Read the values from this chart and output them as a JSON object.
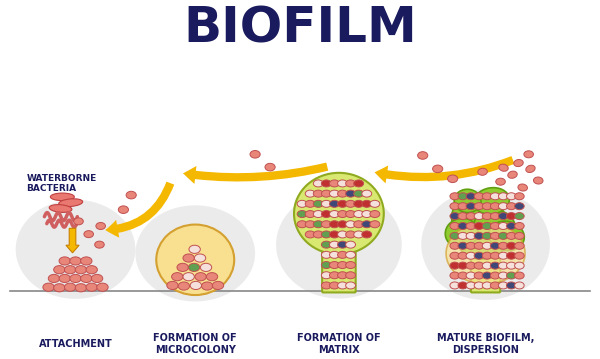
{
  "title": "BIOFILM",
  "title_fontsize": 36,
  "title_fontweight": "bold",
  "title_color": "#1a1a5e",
  "background_color": "#ffffff",
  "stages": [
    "ATTACHMENT",
    "FORMATION OF\nMICROCOLONY",
    "FORMATION OF\nMATRIX",
    "MATURE BIOFILM,\nDISPERSION"
  ],
  "waterborne_label": "WATERBORNE\nBACTERIA",
  "stage_label_fontsize": 7.0,
  "stage_label_color": "#1a1a5e",
  "label_fontweight": "bold",
  "ellipse_color": "#dcdcdc",
  "arrow_color": "#f5b800",
  "arrow_edge_color": "#c88000",
  "base_line_color": "#888888",
  "bacteria_fill": "#e8867a",
  "bacteria_edge": "#c05050",
  "bacteria_white_fill": "#f5e0dc",
  "bacteria_dark_fill": "#c03030",
  "bacteria_green_fill": "#60a050",
  "bacteria_blue_fill": "#404878",
  "microcolony_fill": "#f8e090",
  "microcolony_edge": "#d4a030",
  "matrix_fill": "#d8e870",
  "matrix_edge": "#90aa20",
  "green_blob_fill": "#90cc30",
  "green_blob_edge": "#60a010",
  "rod_fill": "#e87870",
  "rod_edge": "#c04040",
  "wavy_color": "#d06060"
}
